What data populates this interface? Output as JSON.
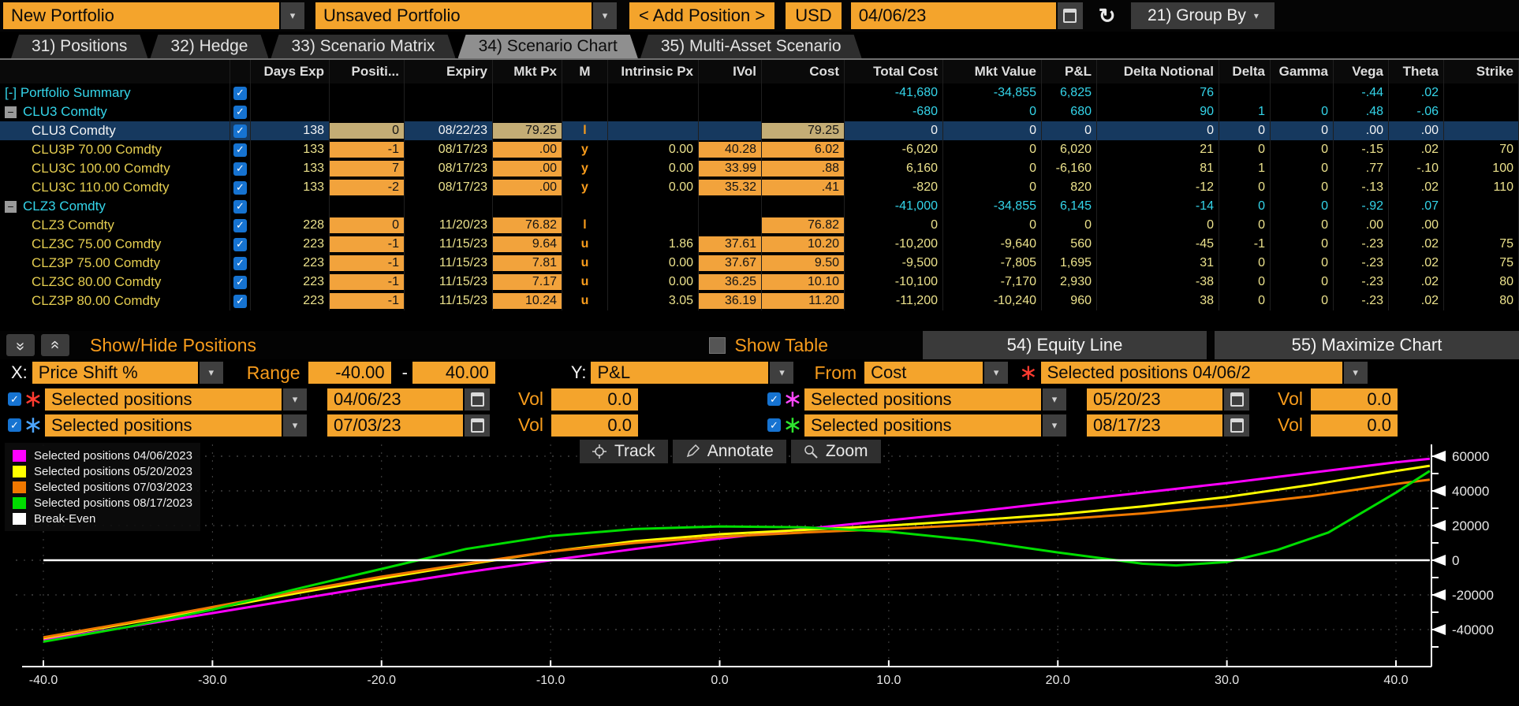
{
  "topbar": {
    "portfolio": "New Portfolio",
    "portfolio_name": "Unsaved Portfolio",
    "add_position": "< Add Position >",
    "currency": "USD",
    "date": "04/06/23",
    "group_by": "21) Group By"
  },
  "tabs": [
    {
      "label": "31) Positions",
      "active": false
    },
    {
      "label": "32) Hedge",
      "active": false
    },
    {
      "label": "33) Scenario Matrix",
      "active": false
    },
    {
      "label": "34) Scenario Chart",
      "active": true
    },
    {
      "label": "35) Multi-Asset Scenario",
      "active": false
    }
  ],
  "table": {
    "columns": [
      "",
      "",
      "Days Exp",
      "Positi...",
      "Expiry",
      "Mkt Px",
      "M",
      "Intrinsic Px",
      "IVol",
      "Cost",
      "Total Cost",
      "Mkt Value",
      "P&L",
      "Delta Notional",
      "Delta",
      "Gamma",
      "Vega",
      "Theta",
      "Strike"
    ],
    "rows": [
      {
        "name": "Portfolio Summary",
        "prefix": "[-]",
        "style": "summary",
        "selected": false,
        "cells": [
          "",
          "",
          "",
          "",
          "",
          "",
          "",
          "",
          "-41,680",
          "-34,855",
          "6,825",
          "76",
          "",
          "",
          "-.44",
          ".02",
          ""
        ],
        "o": [],
        "t": []
      },
      {
        "name": "CLU3 Comdty",
        "prefix": "box",
        "style": "group",
        "selected": false,
        "cells": [
          "",
          "",
          "",
          "",
          "",
          "",
          "",
          "",
          "-680",
          "0",
          "680",
          "90",
          "1",
          "0",
          ".48",
          "-.06",
          ""
        ],
        "o": [],
        "t": []
      },
      {
        "name": "CLU3 Comdty",
        "prefix": "",
        "style": "leaf",
        "selected": true,
        "cells": [
          "138",
          "0",
          "08/22/23",
          "79.25",
          "l",
          "",
          "",
          "79.25",
          "0",
          "0",
          "0",
          "0",
          "0",
          "0",
          ".00",
          ".00",
          ""
        ],
        "o": [],
        "t": [
          1,
          3,
          7
        ]
      },
      {
        "name": "CLU3P 70.00 Comdty",
        "prefix": "",
        "style": "leaf",
        "selected": false,
        "cells": [
          "133",
          "-1",
          "08/17/23",
          ".00",
          "y",
          "0.00",
          "40.28",
          "6.02",
          "-6,020",
          "0",
          "6,020",
          "21",
          "0",
          "0",
          "-.15",
          ".02",
          "70"
        ],
        "o": [
          1,
          3,
          6,
          7
        ],
        "t": []
      },
      {
        "name": "CLU3C 100.00 Comdty",
        "prefix": "",
        "style": "leaf",
        "selected": false,
        "cells": [
          "133",
          "7",
          "08/17/23",
          ".00",
          "y",
          "0.00",
          "33.99",
          ".88",
          "6,160",
          "0",
          "-6,160",
          "81",
          "1",
          "0",
          ".77",
          "-.10",
          "100"
        ],
        "o": [
          1,
          3,
          6,
          7
        ],
        "t": []
      },
      {
        "name": "CLU3C 110.00 Comdty",
        "prefix": "",
        "style": "leaf",
        "selected": false,
        "cells": [
          "133",
          "-2",
          "08/17/23",
          ".00",
          "y",
          "0.00",
          "35.32",
          ".41",
          "-820",
          "0",
          "820",
          "-12",
          "0",
          "0",
          "-.13",
          ".02",
          "110"
        ],
        "o": [
          1,
          3,
          6,
          7
        ],
        "t": []
      },
      {
        "name": "CLZ3 Comdty",
        "prefix": "box",
        "style": "group",
        "selected": false,
        "cells": [
          "",
          "",
          "",
          "",
          "",
          "",
          "",
          "",
          "-41,000",
          "-34,855",
          "6,145",
          "-14",
          "0",
          "0",
          "-.92",
          ".07",
          ""
        ],
        "o": [],
        "t": []
      },
      {
        "name": "CLZ3 Comdty",
        "prefix": "",
        "style": "leaf",
        "selected": false,
        "cells": [
          "228",
          "0",
          "11/20/23",
          "76.82",
          "l",
          "",
          "",
          "76.82",
          "0",
          "0",
          "0",
          "0",
          "0",
          "0",
          ".00",
          ".00",
          ""
        ],
        "o": [
          1,
          3,
          7
        ],
        "t": []
      },
      {
        "name": "CLZ3C 75.00 Comdty",
        "prefix": "",
        "style": "leaf",
        "selected": false,
        "cells": [
          "223",
          "-1",
          "11/15/23",
          "9.64",
          "u",
          "1.86",
          "37.61",
          "10.20",
          "-10,200",
          "-9,640",
          "560",
          "-45",
          "-1",
          "0",
          "-.23",
          ".02",
          "75"
        ],
        "o": [
          1,
          3,
          6,
          7
        ],
        "t": []
      },
      {
        "name": "CLZ3P 75.00 Comdty",
        "prefix": "",
        "style": "leaf",
        "selected": false,
        "cells": [
          "223",
          "-1",
          "11/15/23",
          "7.81",
          "u",
          "0.00",
          "37.67",
          "9.50",
          "-9,500",
          "-7,805",
          "1,695",
          "31",
          "0",
          "0",
          "-.23",
          ".02",
          "75"
        ],
        "o": [
          1,
          3,
          6,
          7
        ],
        "t": []
      },
      {
        "name": "CLZ3C 80.00 Comdty",
        "prefix": "",
        "style": "leaf",
        "selected": false,
        "cells": [
          "223",
          "-1",
          "11/15/23",
          "7.17",
          "u",
          "0.00",
          "36.25",
          "10.10",
          "-10,100",
          "-7,170",
          "2,930",
          "-38",
          "0",
          "0",
          "-.23",
          ".02",
          "80"
        ],
        "o": [
          1,
          3,
          6,
          7
        ],
        "t": []
      },
      {
        "name": "CLZ3P 80.00 Comdty",
        "prefix": "",
        "style": "leaf",
        "selected": false,
        "cells": [
          "223",
          "-1",
          "11/15/23",
          "10.24",
          "u",
          "3.05",
          "36.19",
          "11.20",
          "-11,200",
          "-10,240",
          "960",
          "38",
          "0",
          "0",
          "-.23",
          ".02",
          "80"
        ],
        "o": [
          1,
          3,
          6,
          7
        ],
        "t": []
      }
    ]
  },
  "midbar": {
    "show_hide": "Show/Hide Positions",
    "show_table": "Show Table",
    "equity_line": "54) Equity Line",
    "maximize_chart": "55) Maximize Chart"
  },
  "controls": {
    "x_label": "X:",
    "x_value": "Price Shift %",
    "range_label": "Range",
    "range_from": "-40.00",
    "range_dash": "-",
    "range_to": "40.00",
    "y_label": "Y:",
    "y_value": "P&L",
    "from_label": "From",
    "from_value": "Cost",
    "selected_value": "Selected positions 04/06/2"
  },
  "scenario_selectors": [
    {
      "checked": true,
      "marker_color": "#ff3b30",
      "label": "Selected positions",
      "date": "04/06/23",
      "vol_label": "Vol",
      "vol": "0.0"
    },
    {
      "checked": true,
      "marker_color": "#ff47ff",
      "label": "Selected positions",
      "date": "05/20/23",
      "vol_label": "Vol",
      "vol": "0.0"
    },
    {
      "checked": true,
      "marker_color": "#4da6ff",
      "label": "Selected positions",
      "date": "07/03/23",
      "vol_label": "Vol",
      "vol": "0.0"
    },
    {
      "checked": true,
      "marker_color": "#2ee62e",
      "label": "Selected positions",
      "date": "08/17/23",
      "vol_label": "Vol",
      "vol": "0.0"
    }
  ],
  "chart_tools": {
    "track": "Track",
    "annotate": "Annotate",
    "zoom": "Zoom"
  },
  "chart_data": {
    "type": "line",
    "title": "Scenario Chart P&L vs Price Shift %",
    "xlabel": "Price Shift %",
    "ylabel": "P&L",
    "xlim": [
      -40,
      42
    ],
    "ylim": [
      -52000,
      66000
    ],
    "x_ticks": [
      -40,
      -30,
      -20,
      -10,
      0,
      10,
      20,
      30,
      40
    ],
    "x_tick_labels": [
      "-40.0",
      "-30.0",
      "-20.0",
      "-10.0",
      "0.0",
      "10.0",
      "20.0",
      "30.0",
      "40.0"
    ],
    "y_ticks": [
      -40000,
      -20000,
      0,
      20000,
      40000,
      60000
    ],
    "y_tick_labels": [
      "-40000",
      "-20000",
      "0",
      "20000",
      "40000",
      "60000"
    ],
    "grid": true,
    "legend_position": "top-left",
    "series": [
      {
        "name": "Selected positions 04/06/2023",
        "color": "#ff00ff",
        "points": [
          [
            -40,
            -46000
          ],
          [
            -35,
            -38500
          ],
          [
            -30,
            -30500
          ],
          [
            -25,
            -22500
          ],
          [
            -20,
            -14500
          ],
          [
            -15,
            -7000
          ],
          [
            -10,
            0
          ],
          [
            -5,
            6500
          ],
          [
            0,
            12500
          ],
          [
            5,
            18000
          ],
          [
            10,
            23000
          ],
          [
            15,
            28000
          ],
          [
            20,
            33500
          ],
          [
            25,
            39000
          ],
          [
            30,
            44500
          ],
          [
            35,
            50500
          ],
          [
            40,
            56500
          ],
          [
            42,
            58500
          ]
        ]
      },
      {
        "name": "Selected positions 05/20/2023",
        "color": "#ffff00",
        "points": [
          [
            -40,
            -45000
          ],
          [
            -35,
            -36500
          ],
          [
            -30,
            -28000
          ],
          [
            -25,
            -19000
          ],
          [
            -20,
            -10500
          ],
          [
            -15,
            -2500
          ],
          [
            -10,
            5000
          ],
          [
            -5,
            11000
          ],
          [
            0,
            15000
          ],
          [
            5,
            17500
          ],
          [
            10,
            20000
          ],
          [
            15,
            23000
          ],
          [
            20,
            26500
          ],
          [
            25,
            31000
          ],
          [
            30,
            36500
          ],
          [
            35,
            43500
          ],
          [
            40,
            51500
          ],
          [
            42,
            54500
          ]
        ]
      },
      {
        "name": "Selected positions 07/03/2023",
        "color": "#f07800",
        "points": [
          [
            -40,
            -44500
          ],
          [
            -35,
            -36000
          ],
          [
            -30,
            -27000
          ],
          [
            -25,
            -18000
          ],
          [
            -20,
            -9500
          ],
          [
            -15,
            -2000
          ],
          [
            -10,
            5000
          ],
          [
            -5,
            10000
          ],
          [
            0,
            13500
          ],
          [
            5,
            16000
          ],
          [
            10,
            18000
          ],
          [
            15,
            20500
          ],
          [
            20,
            23500
          ],
          [
            25,
            27000
          ],
          [
            30,
            31500
          ],
          [
            35,
            37000
          ],
          [
            40,
            44000
          ],
          [
            42,
            46500
          ]
        ]
      },
      {
        "name": "Selected positions 08/17/2023",
        "color": "#00dd00",
        "points": [
          [
            -40,
            -47000
          ],
          [
            -35,
            -38500
          ],
          [
            -30,
            -28500
          ],
          [
            -25,
            -16500
          ],
          [
            -20,
            -5000
          ],
          [
            -15,
            6500
          ],
          [
            -10,
            14000
          ],
          [
            -5,
            18000
          ],
          [
            0,
            19500
          ],
          [
            5,
            19000
          ],
          [
            10,
            16500
          ],
          [
            15,
            11500
          ],
          [
            20,
            4500
          ],
          [
            25,
            -2000
          ],
          [
            27,
            -3000
          ],
          [
            30,
            -1000
          ],
          [
            33,
            6000
          ],
          [
            36,
            16000
          ],
          [
            40,
            39000
          ],
          [
            42,
            51500
          ]
        ]
      },
      {
        "name": "Break-Even",
        "color": "#ffffff",
        "points": [
          [
            -40,
            0
          ],
          [
            42,
            0
          ]
        ]
      }
    ]
  }
}
